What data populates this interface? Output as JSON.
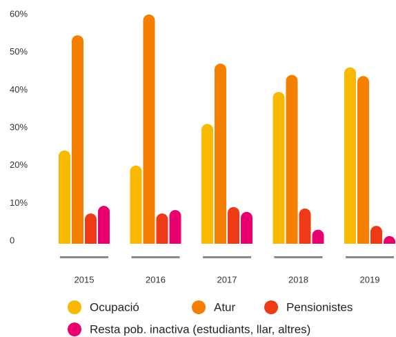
{
  "chart_data": {
    "type": "bar",
    "categories": [
      "2015",
      "2016",
      "2017",
      "2018",
      "2019"
    ],
    "series": [
      {
        "name": "Ocupació",
        "color": "#f9b900",
        "values": [
          24,
          20,
          31,
          39.5,
          46
        ]
      },
      {
        "name": "Atur",
        "color": "#f57f00",
        "values": [
          54.5,
          60,
          47,
          44,
          43.7
        ]
      },
      {
        "name": "Pensionistes",
        "color": "#ee3a16",
        "values": [
          7.3,
          7.3,
          9,
          8.6,
          4
        ]
      },
      {
        "name": "Resta pob. inactiva (estudiants, llar, altres)",
        "color": "#e8006f",
        "values": [
          9.3,
          8.2,
          7.7,
          3,
          1.3
        ]
      }
    ],
    "ylim": [
      0,
      60
    ],
    "yticks": [
      0,
      {
        "value": 10,
        "label": "10%"
      },
      {
        "value": 20,
        "label": "20%"
      },
      {
        "value": 30,
        "label": "30%"
      },
      {
        "value": 40,
        "label": "40%"
      },
      {
        "value": 50,
        "label": "50%"
      },
      {
        "value": 60,
        "label": "60%"
      }
    ],
    "grid": false
  }
}
